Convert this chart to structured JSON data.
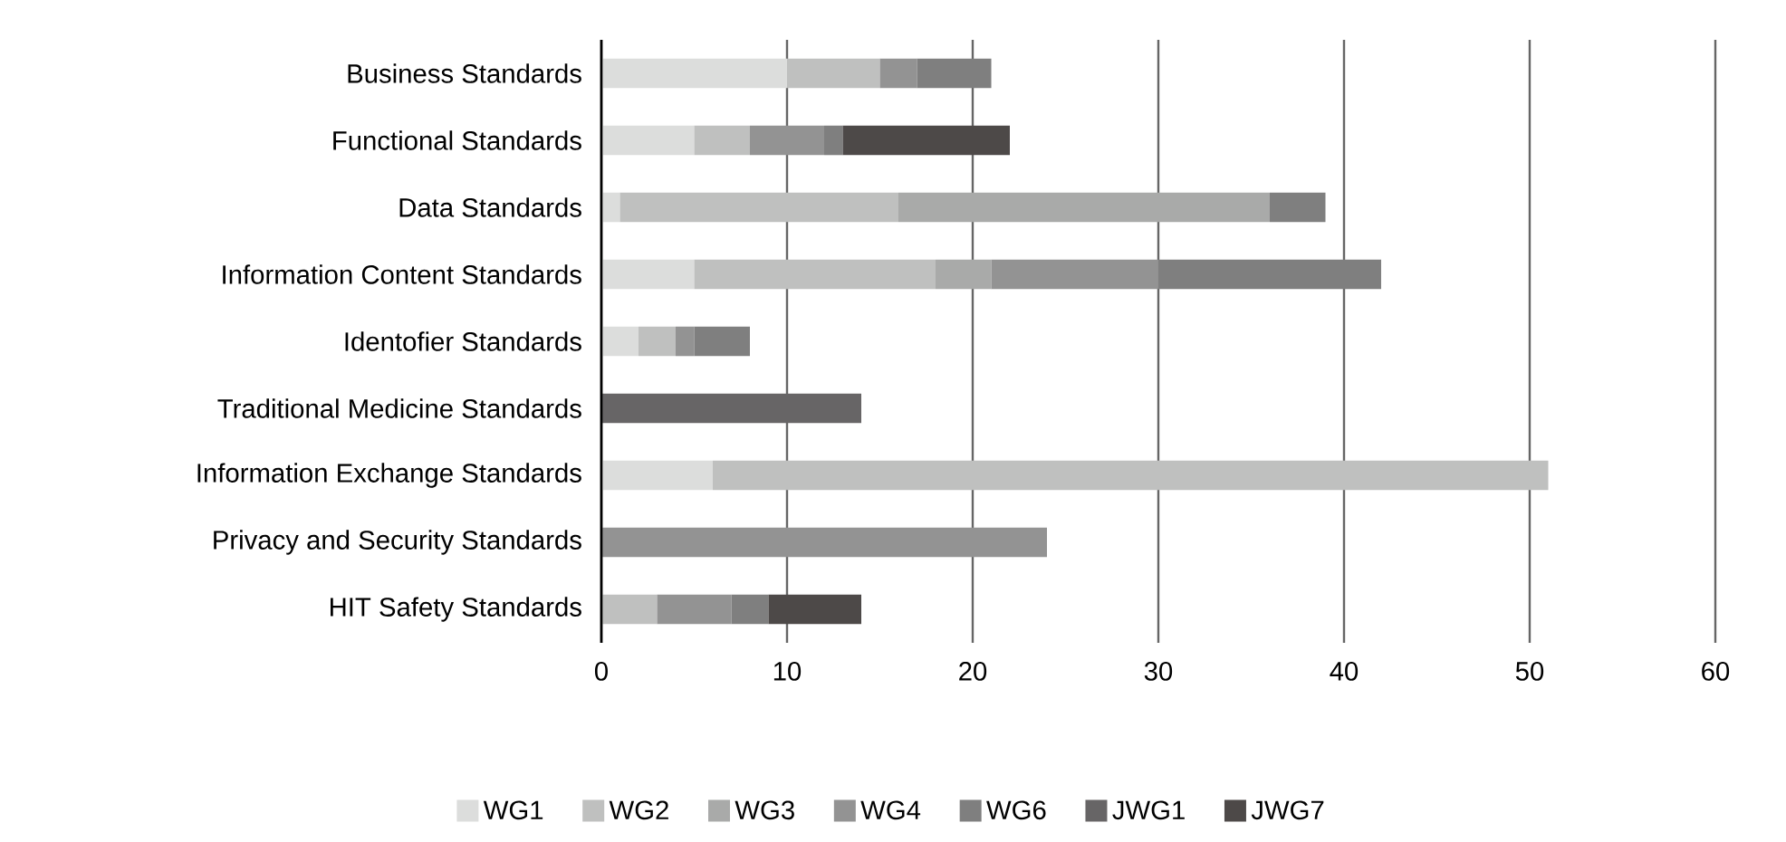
{
  "chart_data": {
    "type": "bar",
    "orientation": "horizontal",
    "stacked": true,
    "categories": [
      "Business Standards",
      "Functional Standards",
      "Data Standards",
      "Information Content Standards",
      "Identofier Standards",
      "Traditional Medicine Standards",
      "Information Exchange Standards",
      "Privacy and Security Standards",
      "HIT Safety Standards"
    ],
    "series": [
      {
        "name": "WG1",
        "color": "#dcdddc",
        "values": [
          10,
          5,
          1,
          5,
          2,
          null,
          6,
          null,
          null
        ]
      },
      {
        "name": "WG2",
        "color": "#bfc0bf",
        "values": [
          5,
          3,
          15,
          13,
          2,
          null,
          45,
          null,
          3
        ]
      },
      {
        "name": "WG3",
        "color": "#a9aaa9",
        "values": [
          null,
          null,
          20,
          3,
          null,
          null,
          null,
          null,
          null
        ]
      },
      {
        "name": "WG4",
        "color": "#939393",
        "values": [
          2,
          4,
          null,
          9,
          1,
          null,
          null,
          24,
          4
        ]
      },
      {
        "name": "WG6",
        "color": "#7f7f7f",
        "values": [
          4,
          1,
          3,
          12,
          3,
          null,
          null,
          null,
          2
        ]
      },
      {
        "name": "JWG1",
        "color": "#676566",
        "values": [
          null,
          null,
          null,
          null,
          null,
          14,
          null,
          null,
          null
        ]
      },
      {
        "name": "JWG7",
        "color": "#4d4948",
        "values": [
          null,
          9,
          null,
          null,
          null,
          null,
          null,
          null,
          5
        ]
      }
    ],
    "xlim": [
      0,
      60
    ],
    "xticks": [
      0,
      10,
      20,
      30,
      40,
      50,
      60
    ],
    "grid": "x",
    "legend": "bottom"
  }
}
